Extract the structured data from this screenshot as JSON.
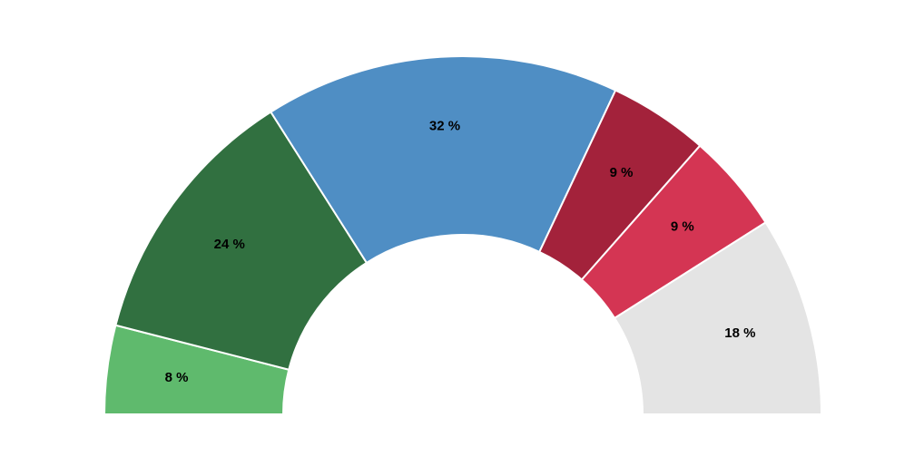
{
  "chart_data": {
    "type": "half-donut",
    "values": [
      8,
      24,
      32,
      9,
      9,
      18
    ],
    "value_labels": [
      "8 %",
      "24 %",
      "32 %",
      "9 %",
      "9 %",
      "18 %"
    ],
    "colors": [
      "#5fba6d",
      "#317040",
      "#4f8ec4",
      "#a3223b",
      "#d43553",
      "#e4e4e4"
    ]
  }
}
